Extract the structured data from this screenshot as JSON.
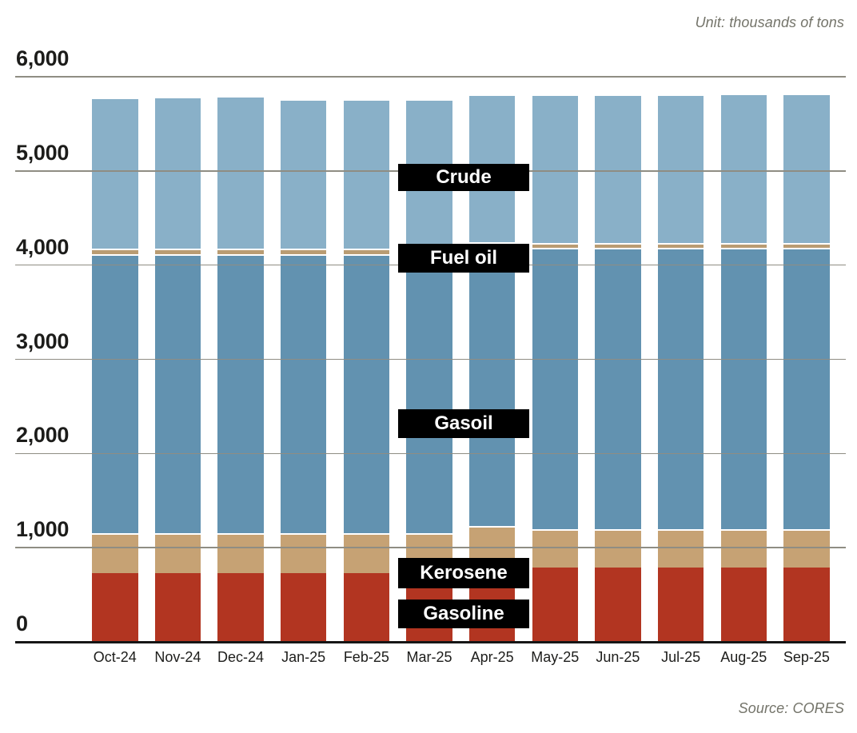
{
  "header": {
    "unit_note": "Unit: thousands of tons"
  },
  "footer": {
    "source_note": "Source: CORES"
  },
  "chart_data": {
    "type": "bar",
    "stacked": true,
    "unit": "thousands of tons",
    "source": "CORES",
    "categories": [
      "Oct-24",
      "Nov-24",
      "Dec-24",
      "Jan-25",
      "Feb-25",
      "Mar-25",
      "Apr-25",
      "May-25",
      "Jun-25",
      "Jul-25",
      "Aug-25",
      "Sep-25"
    ],
    "series": [
      {
        "name": "Gasoline",
        "color": "#b23521",
        "values": [
          730,
          730,
          730,
          730,
          730,
          730,
          800,
          790,
          790,
          790,
          790,
          790
        ]
      },
      {
        "name": "Kerosene",
        "color": "#c6a274",
        "values": [
          420,
          420,
          420,
          420,
          420,
          420,
          430,
          405,
          405,
          405,
          405,
          405
        ]
      },
      {
        "name": "Gasoil",
        "color": "#6292b0",
        "values": [
          2970,
          2970,
          2970,
          2970,
          2970,
          2965,
          2960,
          2990,
          2990,
          2990,
          2990,
          2990
        ]
      },
      {
        "name": "Fuel oil",
        "color": "#b99c73",
        "values": [
          57,
          57,
          57,
          55,
          55,
          55,
          50,
          48,
          48,
          48,
          48,
          48
        ]
      },
      {
        "name": "Crude",
        "color": "#89b0c8",
        "values": [
          1600,
          1608,
          1616,
          1590,
          1590,
          1595,
          1570,
          1580,
          1580,
          1580,
          1585,
          1585
        ]
      }
    ],
    "totals_approx": [
      5777,
      5785,
      5793,
      5765,
      5765,
      5765,
      5810,
      5813,
      5813,
      5813,
      5818,
      5818
    ],
    "ylim": [
      0,
      6000
    ],
    "ytick_interval": 1000,
    "ytick_labels": [
      "0",
      "1,000",
      "2,000",
      "3,000",
      "4,000",
      "5,000",
      "6,000"
    ],
    "grid": "horizontal gridlines drawn over bars",
    "legend_position": "inline black callout boxes over chart middle",
    "callouts": [
      {
        "label": "Crude"
      },
      {
        "label": "Fuel oil"
      },
      {
        "label": "Gasoil"
      },
      {
        "label": "Kerosene"
      },
      {
        "label": "Gasoline"
      }
    ]
  },
  "colors": {
    "gridline": "#8f8d83",
    "axis": "#161616",
    "tick_text": "#1c1c1a",
    "callout_bg": "#000000",
    "callout_text": "#ffffff",
    "note_text": "#74746a"
  }
}
